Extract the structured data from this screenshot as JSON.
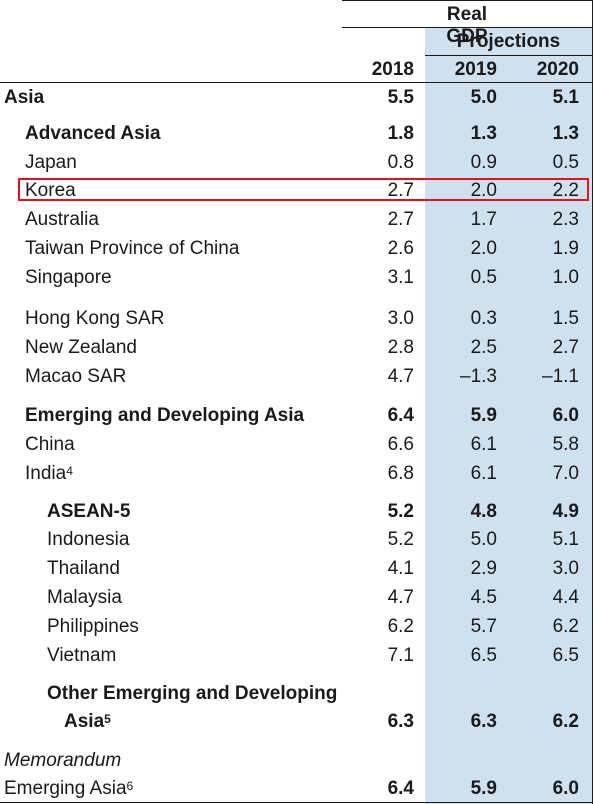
{
  "header": {
    "group": "Real GDP",
    "projections": "Projections",
    "years": [
      "2018",
      "2019",
      "2020"
    ]
  },
  "rows": [
    {
      "label": "Asia",
      "v": [
        "5.5",
        "5.0",
        "5.1"
      ]
    },
    {
      "label": "Advanced Asia",
      "v": [
        "1.8",
        "1.3",
        "1.3"
      ]
    },
    {
      "label": "Japan",
      "v": [
        "0.8",
        "0.9",
        "0.5"
      ]
    },
    {
      "label": "Korea",
      "v": [
        "2.7",
        "2.0",
        "2.2"
      ]
    },
    {
      "label": "Australia",
      "v": [
        "2.7",
        "1.7",
        "2.3"
      ]
    },
    {
      "label": "Taiwan Province of China",
      "v": [
        "2.6",
        "2.0",
        "1.9"
      ]
    },
    {
      "label": "Singapore",
      "v": [
        "3.1",
        "0.5",
        "1.0"
      ]
    },
    {
      "label": "Hong Kong SAR",
      "v": [
        "3.0",
        "0.3",
        "1.5"
      ]
    },
    {
      "label": "New Zealand",
      "v": [
        "2.8",
        "2.5",
        "2.7"
      ]
    },
    {
      "label": "Macao SAR",
      "v": [
        "4.7",
        "–1.3",
        "–1.1"
      ]
    },
    {
      "label": "Emerging and Developing Asia",
      "v": [
        "6.4",
        "5.9",
        "6.0"
      ]
    },
    {
      "label": "China",
      "v": [
        "6.6",
        "6.1",
        "5.8"
      ]
    },
    {
      "label": "India",
      "sup": "4",
      "v": [
        "6.8",
        "6.1",
        "7.0"
      ]
    },
    {
      "label": "ASEAN-5",
      "v": [
        "5.2",
        "4.8",
        "4.9"
      ]
    },
    {
      "label": "Indonesia",
      "v": [
        "5.2",
        "5.0",
        "5.1"
      ]
    },
    {
      "label": "Thailand",
      "v": [
        "4.1",
        "2.9",
        "3.0"
      ]
    },
    {
      "label": "Malaysia",
      "v": [
        "4.7",
        "4.5",
        "4.4"
      ]
    },
    {
      "label": "Philippines",
      "v": [
        "6.2",
        "5.7",
        "6.2"
      ]
    },
    {
      "label": "Vietnam",
      "v": [
        "7.1",
        "6.5",
        "6.5"
      ]
    },
    {
      "label": "Other Emerging and Developing",
      "label2": "Asia",
      "sup": "5",
      "v": [
        "6.3",
        "6.3",
        "6.2"
      ]
    },
    {
      "label": "Memorandum"
    },
    {
      "label": "Emerging Asia",
      "sup": "6",
      "v": [
        "6.4",
        "5.9",
        "6.0"
      ]
    }
  ],
  "highlighted_row": "Korea"
}
